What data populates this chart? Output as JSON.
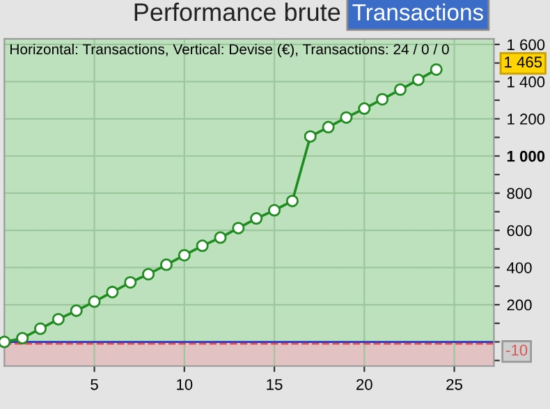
{
  "chart_data": {
    "type": "line",
    "title": "Performance brute",
    "subtitle": "Transactions",
    "annotations": [
      "Horizontal: Transactions, Vertical: Devise (€), Transactions: 24 / 0 / 0",
      "1 465"
    ],
    "x": [
      0,
      1,
      2,
      3,
      4,
      5,
      6,
      7,
      8,
      9,
      10,
      11,
      12,
      13,
      14,
      15,
      16,
      17,
      18,
      19,
      20,
      21,
      22,
      23,
      24
    ],
    "series": [
      {
        "color": "#1e8c1e",
        "values": [
          0,
          20,
          71,
          122,
          168,
          217,
          268,
          320,
          364,
          415,
          466,
          517,
          561,
          612,
          664,
          708,
          758,
          1105,
          1155,
          1207,
          1255,
          1305,
          1357,
          1410,
          1465
        ]
      }
    ],
    "xlim": [
      0,
      27.2
    ],
    "ylim": [
      -130,
      1630
    ],
    "xticks": [
      5,
      10,
      15,
      20,
      25
    ],
    "yticks": [
      {
        "value": -100,
        "label": null
      },
      {
        "value": 0,
        "label": null
      },
      {
        "value": 100,
        "label": null
      },
      {
        "value": 200,
        "label": "200"
      },
      {
        "value": 300,
        "label": null
      },
      {
        "value": 400,
        "label": "400"
      },
      {
        "value": 500,
        "label": null
      },
      {
        "value": 600,
        "label": "600"
      },
      {
        "value": 700,
        "label": null
      },
      {
        "value": 800,
        "label": "800"
      },
      {
        "value": 900,
        "label": null
      },
      {
        "value": 1000,
        "label": "1 000"
      },
      {
        "value": 1100,
        "label": null
      },
      {
        "value": 1200,
        "label": "1 200"
      },
      {
        "value": 1300,
        "label": null
      },
      {
        "value": 1400,
        "label": "1 400"
      },
      {
        "value": 1500,
        "label": null
      },
      {
        "value": 1600,
        "label": "1 600"
      }
    ],
    "ref_lines": [
      {
        "axis": "y",
        "value": 0,
        "color": "#2233cc",
        "line_style": "solid"
      },
      {
        "axis": "y",
        "value": -10,
        "label": "-10",
        "color": "#e05050",
        "line_style": "dashed"
      }
    ],
    "bands": [
      {
        "axis": "y",
        "from": 0,
        "to": 1630,
        "color": "#bde0bd"
      },
      {
        "axis": "y",
        "from": -130,
        "to": 0,
        "color": "#e2c2c2"
      }
    ],
    "grid": true,
    "marker": "circle",
    "line_style": "solid"
  }
}
